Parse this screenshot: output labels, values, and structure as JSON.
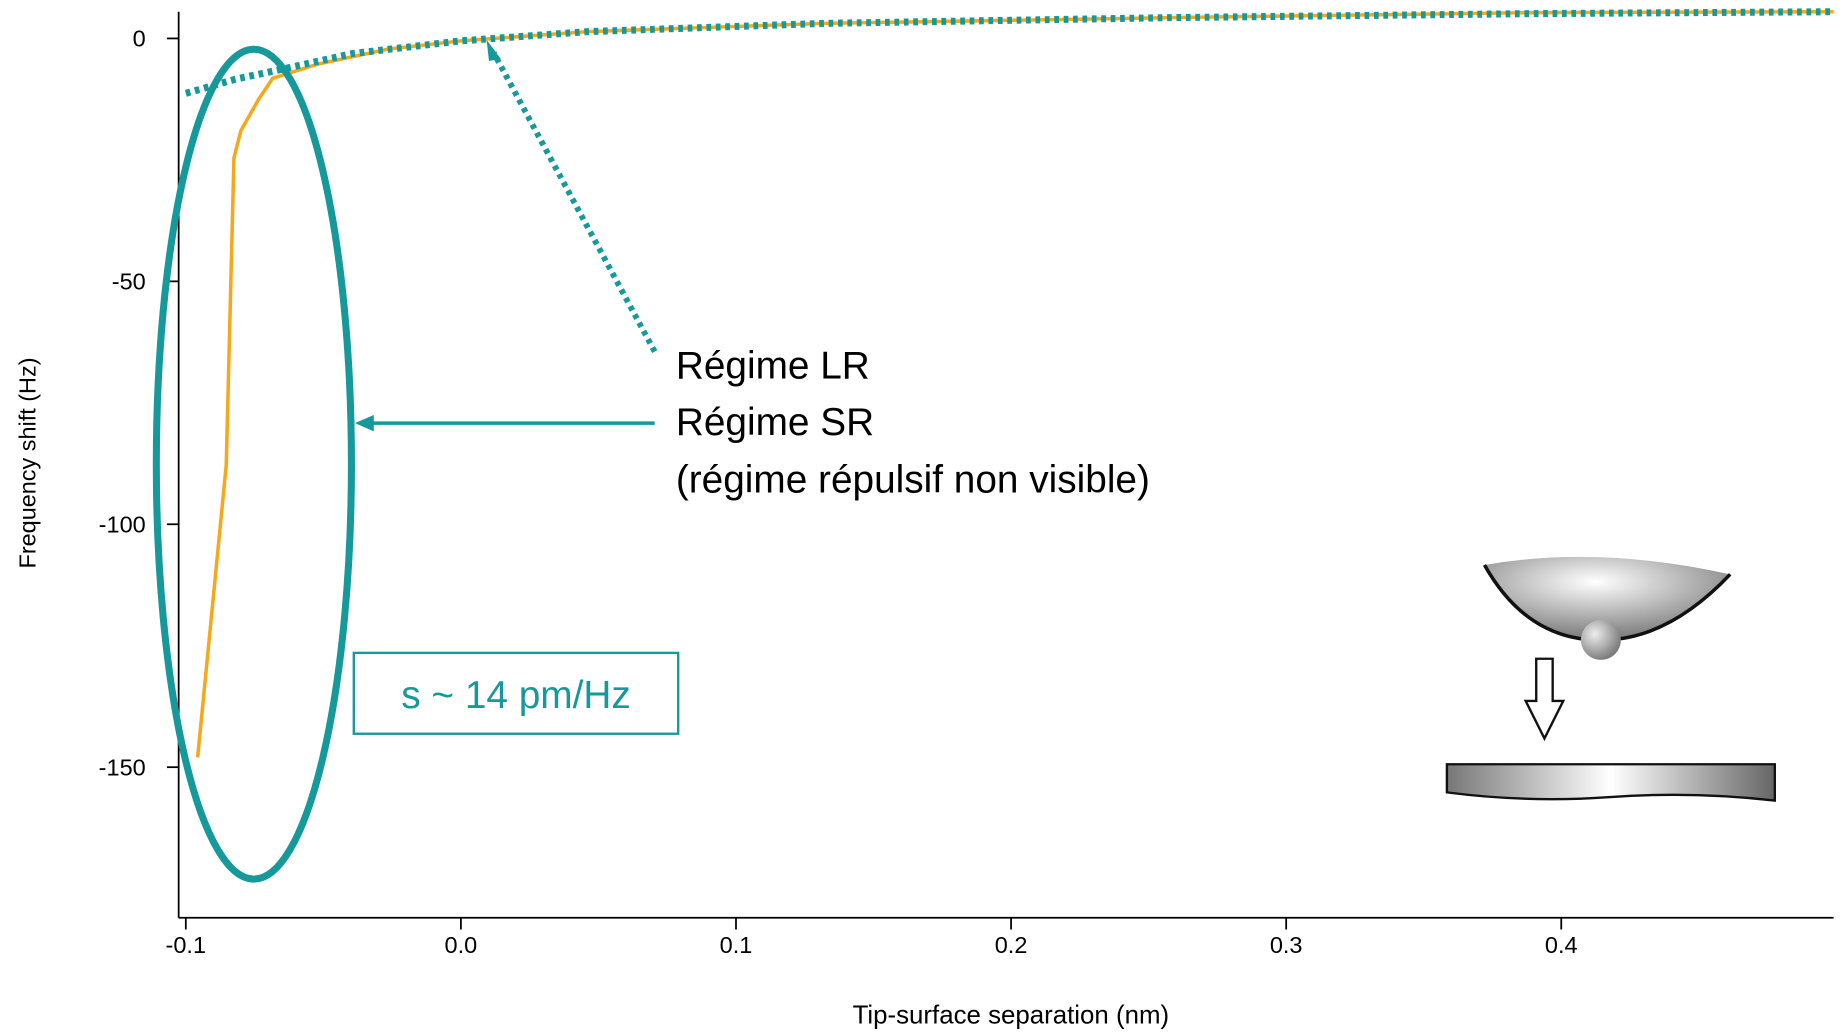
{
  "chart_data": {
    "type": "line",
    "x_label": "Tip-surface separation (nm)",
    "y_label": "Frequency shift (Hz)",
    "xlim": [
      -0.1026,
      0.499
    ],
    "ylim": [
      -181,
      5.5
    ],
    "xticks": [
      -0.1,
      {
        "value": 0,
        "label": "0.0"
      },
      0.1,
      0.2,
      0.3,
      0.4
    ],
    "yticks": [
      0,
      -50,
      -100,
      -150
    ],
    "series": [
      {
        "color": "#f5a81c",
        "style": "solid",
        "x": [
          -0.0957,
          -0.0853,
          -0.0825,
          -0.08,
          -0.0735,
          -0.0684,
          -0.0521,
          -0.0265,
          0,
          0.046,
          0.132,
          0.26,
          0.388,
          0.499
        ],
        "values": [
          -148,
          -87.8,
          -24.6,
          -19,
          -12.5,
          -8.2,
          -5.3,
          -2.2,
          -0.5,
          1.4,
          3.1,
          4.3,
          5.3,
          5.5
        ]
      },
      {
        "color": "#16999a",
        "style": "dotted",
        "x": [
          -0.1,
          -0.082,
          -0.0607,
          -0.0393,
          0,
          0.046,
          0.132,
          0.26,
          0.388,
          0.499
        ],
        "values": [
          -11.3,
          -8.4,
          -5.8,
          -3.1,
          -0.5,
          1.4,
          3.1,
          4.3,
          5.1,
          5.5
        ]
      }
    ],
    "annotations": [
      "Régime LR",
      "Régime SR",
      "(régime répulsif non visible)",
      "s ~ 14 pm/Hz"
    ]
  }
}
